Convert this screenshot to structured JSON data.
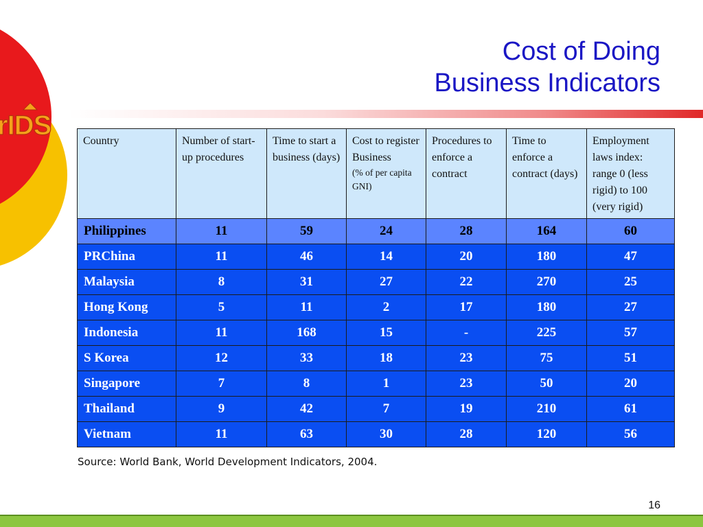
{
  "slide": {
    "title_line1": "Cost of Doing",
    "title_line2": "Business Indicators",
    "logo_text": "rIDS",
    "source": "Source: World Bank, World Development Indicators, 2004.",
    "page_number": "16"
  },
  "table": {
    "headers": [
      {
        "label": "Country",
        "sub": ""
      },
      {
        "label": "Number of start-up procedures",
        "sub": ""
      },
      {
        "label": "Time to start a business (days)",
        "sub": ""
      },
      {
        "label": "Cost to register Business",
        "sub": "(% of per capita GNI)"
      },
      {
        "label": "Procedures to enforce a contract",
        "sub": ""
      },
      {
        "label": "Time to enforce a contract (days)",
        "sub": ""
      },
      {
        "label": "Employment laws index: range 0 (less  rigid) to 100 (very rigid)",
        "sub": ""
      }
    ],
    "rows": [
      {
        "country": "Philippines",
        "values": [
          "11",
          "59",
          "24",
          "28",
          "164",
          "60"
        ],
        "highlight": true
      },
      {
        "country": "PRChina",
        "values": [
          "11",
          "46",
          "14",
          "20",
          "180",
          "47"
        ]
      },
      {
        "country": "Malaysia",
        "values": [
          "8",
          "31",
          "27",
          "22",
          "270",
          "25"
        ]
      },
      {
        "country": "Hong Kong",
        "values": [
          "5",
          "11",
          "2",
          "17",
          "180",
          "27"
        ]
      },
      {
        "country": "Indonesia",
        "values": [
          "11",
          "168",
          "15",
          "-",
          "225",
          "57"
        ]
      },
      {
        "country": "S Korea",
        "values": [
          "12",
          "33",
          "18",
          "23",
          "75",
          "51"
        ]
      },
      {
        "country": "Singapore",
        "values": [
          "7",
          "8",
          "1",
          "23",
          "50",
          "20"
        ]
      },
      {
        "country": "Thailand",
        "values": [
          "9",
          "42",
          "7",
          "19",
          "210",
          "61"
        ]
      },
      {
        "country": "Vietnam",
        "values": [
          "11",
          "63",
          "30",
          "28",
          "120",
          "56"
        ]
      }
    ]
  },
  "colors": {
    "title": "#1a16c4",
    "header_bg": "#cfe8fb",
    "row_bg": "#0a4ef2",
    "highlight_row_bg": "#5b84ff",
    "footer_bar": "#8cc63f",
    "circle_red": "#e8191c",
    "circle_yellow": "#f7c100"
  }
}
